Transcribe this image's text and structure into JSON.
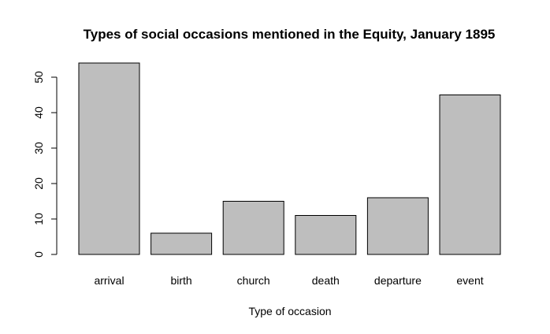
{
  "chart_data": {
    "type": "bar",
    "title": "Types of social occasions mentioned in the Equity, January 1895",
    "xlabel": "Type of occasion",
    "ylabel": "",
    "categories": [
      "arrival",
      "birth",
      "church",
      "death",
      "departure",
      "event"
    ],
    "values": [
      54,
      6,
      15,
      11,
      16,
      45
    ],
    "yticks": [
      0,
      10,
      20,
      30,
      40,
      50
    ],
    "ylim": [
      0,
      54
    ],
    "grid": false,
    "legend": "none",
    "colors": {
      "bar_fill": "#bebebe",
      "bar_stroke": "#000000"
    }
  }
}
